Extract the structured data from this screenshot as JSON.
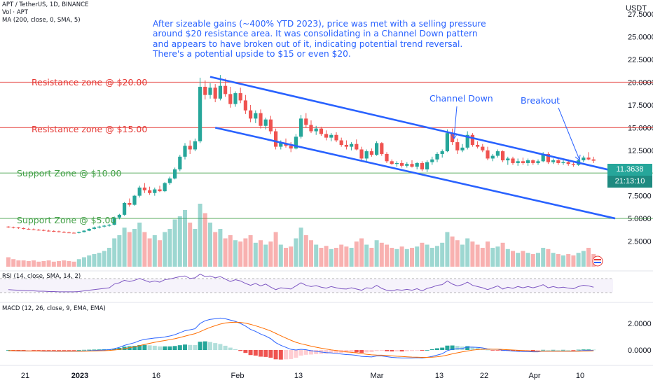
{
  "header": {
    "line1": "APT / TetherUS, 1D, BINANCE",
    "line2": "Vol · APT",
    "line3": "MA (200, close, 0, SMA, 5)"
  },
  "note": [
    "After sizeable gains (~400% YTD 2023), price was met with a selling pressure around $20 resistance area. It was consolidating in a Channel Down pattern and appears to have broken out of it, indicating potential trend reversal.",
    "There's a potential upside to $15 or even $20."
  ],
  "zones": [
    {
      "label": "Resistance zone @ $20.00",
      "price": 20.0,
      "color": "#e53935"
    },
    {
      "label": "Resistance zone @ $15.00",
      "price": 15.0,
      "color": "#e53935"
    },
    {
      "label": "Support Zone @ $10.00",
      "price": 10.0,
      "color": "#43a047"
    },
    {
      "label": "Support Zone @ $5.00",
      "price": 5.0,
      "color": "#43a047"
    }
  ],
  "callouts": {
    "channel": "Channel Down",
    "breakout": "Breakout"
  },
  "axis": {
    "currency": "USDT",
    "ticks": [
      "27.5000",
      "25.0000",
      "22.5000",
      "20.0000",
      "17.5000",
      "15.0000",
      "12.5000",
      "7.5000",
      "5.0000",
      "2.5000"
    ],
    "macd_ticks": [
      "2.0000",
      "0.0000"
    ],
    "last_price": "11.3638",
    "countdown": "21:13:10",
    "dates": [
      "21",
      "2023",
      "16",
      "Feb",
      "13",
      "Mar",
      "13",
      "22",
      "Apr",
      "10"
    ]
  },
  "rsi_label": "RSI (14, close, SMA, 14, 2)",
  "macd_label": "MACD (12, 26, close, 9, EMA, EMA)",
  "colors": {
    "up": "#26a69a",
    "down": "#ef5350",
    "channel": "#2962ff",
    "rsi": "#7e57c2",
    "macd": "#2962ff",
    "signal": "#ff6d00"
  },
  "chart_data": {
    "type": "candlestick",
    "symbol": "APT / TetherUS",
    "timeframe": "1D",
    "ylim": [
      0,
      28.5
    ],
    "candles": [
      [
        4.1,
        4.15,
        3.95,
        4.05
      ],
      [
        4.05,
        4.1,
        3.9,
        4.0
      ],
      [
        4.0,
        4.05,
        3.85,
        3.92
      ],
      [
        3.92,
        4.0,
        3.8,
        3.85
      ],
      [
        3.85,
        3.95,
        3.75,
        3.8
      ],
      [
        3.8,
        3.9,
        3.7,
        3.75
      ],
      [
        3.75,
        3.85,
        3.65,
        3.72
      ],
      [
        3.72,
        3.8,
        3.6,
        3.65
      ],
      [
        3.65,
        3.75,
        3.55,
        3.62
      ],
      [
        3.62,
        3.7,
        3.5,
        3.58
      ],
      [
        3.58,
        3.65,
        3.45,
        3.5
      ],
      [
        3.5,
        3.6,
        3.4,
        3.45
      ],
      [
        3.45,
        3.55,
        3.38,
        3.42
      ],
      [
        3.42,
        3.5,
        3.35,
        3.4
      ],
      [
        3.4,
        3.55,
        3.35,
        3.5
      ],
      [
        3.5,
        3.7,
        3.45,
        3.65
      ],
      [
        3.65,
        3.9,
        3.6,
        3.85
      ],
      [
        3.85,
        4.1,
        3.8,
        4.0
      ],
      [
        4.0,
        4.2,
        3.9,
        4.1
      ],
      [
        4.1,
        4.3,
        4.0,
        4.2
      ],
      [
        4.2,
        4.4,
        4.1,
        4.3
      ],
      [
        4.3,
        5.2,
        4.25,
        5.1
      ],
      [
        5.1,
        5.5,
        4.9,
        5.4
      ],
      [
        5.4,
        6.8,
        5.3,
        6.7
      ],
      [
        6.7,
        7.2,
        6.3,
        6.5
      ],
      [
        6.5,
        7.6,
        6.4,
        7.5
      ],
      [
        7.5,
        8.6,
        7.3,
        8.4
      ],
      [
        8.4,
        8.9,
        7.8,
        8.1
      ],
      [
        8.1,
        8.5,
        7.6,
        7.8
      ],
      [
        7.8,
        8.4,
        7.5,
        8.2
      ],
      [
        8.2,
        8.6,
        7.9,
        8.0
      ],
      [
        8.0,
        9.0,
        7.9,
        8.9
      ],
      [
        8.9,
        9.6,
        8.7,
        9.4
      ],
      [
        9.4,
        10.6,
        9.3,
        10.4
      ],
      [
        10.4,
        12.0,
        10.2,
        11.8
      ],
      [
        11.8,
        13.3,
        11.5,
        13.0
      ],
      [
        13.0,
        13.6,
        12.1,
        12.6
      ],
      [
        12.6,
        13.8,
        12.4,
        13.5
      ],
      [
        13.5,
        20.5,
        13.3,
        19.5
      ],
      [
        19.5,
        20.2,
        18.1,
        18.6
      ],
      [
        18.6,
        19.9,
        18.2,
        19.4
      ],
      [
        19.4,
        19.8,
        17.8,
        18.2
      ],
      [
        18.2,
        20.8,
        18.0,
        19.6
      ],
      [
        19.6,
        20.4,
        18.4,
        18.7
      ],
      [
        18.7,
        19.5,
        17.2,
        17.6
      ],
      [
        17.6,
        19.0,
        17.3,
        18.8
      ],
      [
        18.8,
        19.4,
        17.7,
        18.0
      ],
      [
        18.0,
        18.6,
        16.5,
        16.9
      ],
      [
        16.9,
        17.5,
        15.6,
        16.0
      ],
      [
        16.0,
        16.9,
        15.5,
        16.6
      ],
      [
        16.6,
        17.0,
        14.9,
        15.2
      ],
      [
        15.2,
        16.1,
        14.8,
        15.9
      ],
      [
        15.9,
        16.3,
        14.3,
        14.6
      ],
      [
        14.6,
        14.9,
        12.6,
        12.9
      ],
      [
        12.9,
        13.6,
        12.6,
        13.3
      ],
      [
        13.3,
        13.8,
        12.8,
        13.0
      ],
      [
        13.0,
        13.4,
        12.3,
        12.7
      ],
      [
        12.7,
        14.3,
        12.6,
        14.0
      ],
      [
        14.0,
        16.4,
        13.8,
        16.0
      ],
      [
        16.0,
        16.6,
        15.0,
        15.3
      ],
      [
        15.3,
        15.8,
        14.4,
        14.6
      ],
      [
        14.6,
        15.2,
        14.2,
        14.9
      ],
      [
        14.9,
        15.1,
        14.1,
        14.3
      ],
      [
        14.3,
        14.7,
        13.6,
        13.9
      ],
      [
        13.9,
        14.4,
        13.5,
        14.2
      ],
      [
        14.2,
        14.5,
        13.4,
        13.6
      ],
      [
        13.6,
        13.9,
        12.9,
        13.1
      ],
      [
        13.1,
        13.6,
        12.6,
        12.9
      ],
      [
        12.9,
        13.4,
        12.5,
        13.2
      ],
      [
        13.2,
        13.7,
        12.5,
        12.6
      ],
      [
        12.6,
        12.9,
        11.4,
        11.6
      ],
      [
        11.6,
        12.6,
        11.3,
        12.4
      ],
      [
        12.4,
        12.7,
        11.8,
        12.0
      ],
      [
        12.0,
        13.5,
        11.9,
        13.3
      ],
      [
        13.3,
        13.4,
        11.9,
        12.1
      ],
      [
        12.1,
        12.3,
        11.1,
        11.3
      ],
      [
        11.3,
        11.5,
        10.9,
        11.0
      ],
      [
        11.0,
        11.3,
        10.7,
        11.1
      ],
      [
        11.1,
        11.4,
        10.6,
        10.8
      ],
      [
        10.8,
        11.2,
        10.6,
        11.0
      ],
      [
        11.0,
        11.4,
        10.6,
        10.7
      ],
      [
        10.7,
        11.2,
        10.4,
        11.1
      ],
      [
        11.1,
        11.3,
        10.2,
        10.4
      ],
      [
        10.4,
        11.4,
        10.1,
        11.2
      ],
      [
        11.2,
        11.8,
        10.9,
        11.5
      ],
      [
        11.5,
        12.3,
        11.2,
        12.1
      ],
      [
        12.1,
        12.6,
        11.7,
        12.4
      ],
      [
        12.4,
        14.8,
        12.3,
        14.4
      ],
      [
        14.4,
        14.9,
        13.1,
        13.4
      ],
      [
        13.4,
        13.8,
        12.1,
        12.5
      ],
      [
        12.5,
        13.2,
        12.3,
        12.8
      ],
      [
        12.8,
        14.6,
        12.6,
        14.2
      ],
      [
        14.2,
        14.4,
        12.9,
        13.1
      ],
      [
        13.1,
        13.5,
        12.7,
        12.9
      ],
      [
        12.9,
        13.2,
        12.3,
        12.5
      ],
      [
        12.5,
        12.9,
        11.4,
        11.6
      ],
      [
        11.6,
        12.1,
        11.3,
        11.9
      ],
      [
        11.9,
        12.6,
        11.7,
        12.4
      ],
      [
        12.4,
        12.5,
        11.2,
        11.4
      ],
      [
        11.4,
        11.8,
        10.9,
        11.6
      ],
      [
        11.6,
        11.8,
        10.9,
        11.1
      ],
      [
        11.1,
        11.6,
        10.8,
        11.3
      ],
      [
        11.3,
        11.7,
        10.9,
        11.1
      ],
      [
        11.1,
        11.6,
        10.8,
        11.4
      ],
      [
        11.4,
        11.5,
        10.9,
        11.1
      ],
      [
        11.1,
        11.5,
        10.9,
        11.3
      ],
      [
        11.3,
        12.3,
        11.2,
        12.1
      ],
      [
        12.1,
        12.3,
        11.0,
        11.2
      ],
      [
        11.2,
        11.6,
        11.0,
        11.4
      ],
      [
        11.4,
        11.6,
        10.9,
        11.1
      ],
      [
        11.1,
        11.4,
        10.9,
        11.2
      ],
      [
        11.2,
        11.5,
        10.8,
        11.0
      ],
      [
        11.0,
        11.3,
        10.7,
        10.9
      ],
      [
        10.9,
        11.5,
        10.8,
        11.4
      ],
      [
        11.4,
        11.9,
        11.2,
        11.7
      ],
      [
        11.7,
        12.3,
        11.4,
        11.5
      ],
      [
        11.5,
        11.8,
        11.1,
        11.36
      ]
    ],
    "volume": [
      0.15,
      0.12,
      0.1,
      0.1,
      0.09,
      0.1,
      0.08,
      0.09,
      0.1,
      0.08,
      0.09,
      0.1,
      0.09,
      0.08,
      0.12,
      0.15,
      0.18,
      0.2,
      0.22,
      0.25,
      0.3,
      0.45,
      0.5,
      0.62,
      0.55,
      0.6,
      0.7,
      0.55,
      0.45,
      0.5,
      0.42,
      0.55,
      0.6,
      0.75,
      0.8,
      0.9,
      0.7,
      0.6,
      1.0,
      0.85,
      0.7,
      0.55,
      0.6,
      0.45,
      0.5,
      0.42,
      0.4,
      0.45,
      0.5,
      0.38,
      0.42,
      0.35,
      0.4,
      0.55,
      0.35,
      0.3,
      0.32,
      0.45,
      0.62,
      0.5,
      0.42,
      0.35,
      0.3,
      0.33,
      0.28,
      0.3,
      0.35,
      0.32,
      0.3,
      0.4,
      0.45,
      0.35,
      0.3,
      0.42,
      0.38,
      0.35,
      0.3,
      0.28,
      0.32,
      0.28,
      0.3,
      0.32,
      0.38,
      0.35,
      0.3,
      0.33,
      0.38,
      0.55,
      0.48,
      0.42,
      0.35,
      0.45,
      0.4,
      0.35,
      0.3,
      0.4,
      0.3,
      0.32,
      0.38,
      0.28,
      0.25,
      0.22,
      0.25,
      0.22,
      0.2,
      0.22,
      0.3,
      0.28,
      0.22,
      0.2,
      0.18,
      0.2,
      0.18,
      0.22,
      0.25,
      0.3,
      0.2
    ],
    "ma200": [],
    "rsi": [
      42,
      41,
      40,
      39,
      38,
      38,
      37,
      37,
      36,
      36,
      35,
      35,
      35,
      35,
      36,
      38,
      40,
      42,
      44,
      46,
      48,
      60,
      64,
      72,
      68,
      72,
      78,
      72,
      66,
      70,
      66,
      74,
      76,
      80,
      84,
      86,
      78,
      80,
      92,
      84,
      86,
      80,
      84,
      76,
      68,
      74,
      70,
      62,
      56,
      62,
      54,
      60,
      50,
      42,
      48,
      46,
      44,
      54,
      64,
      56,
      52,
      55,
      50,
      47,
      52,
      48,
      45,
      44,
      48,
      44,
      40,
      48,
      46,
      56,
      46,
      40,
      38,
      42,
      40,
      43,
      40,
      45,
      38,
      46,
      50,
      56,
      58,
      70,
      60,
      54,
      58,
      66,
      56,
      52,
      48,
      42,
      48,
      54,
      44,
      50,
      46,
      52,
      48,
      52,
      48,
      52,
      58,
      48,
      52,
      48,
      50,
      47,
      45,
      52,
      56,
      54,
      50
    ],
    "macd": [
      -0.05,
      -0.06,
      -0.07,
      -0.07,
      -0.08,
      -0.08,
      -0.08,
      -0.09,
      -0.09,
      -0.09,
      -0.1,
      -0.1,
      -0.1,
      -0.1,
      -0.09,
      -0.08,
      -0.06,
      -0.04,
      -0.02,
      0.0,
      0.02,
      0.1,
      0.2,
      0.35,
      0.45,
      0.55,
      0.7,
      0.8,
      0.85,
      0.9,
      0.92,
      0.98,
      1.05,
      1.15,
      1.3,
      1.45,
      1.52,
      1.6,
      2.0,
      2.2,
      2.3,
      2.35,
      2.4,
      2.35,
      2.25,
      2.15,
      2.0,
      1.8,
      1.55,
      1.4,
      1.2,
      1.05,
      0.85,
      0.55,
      0.35,
      0.2,
      0.05,
      0.0,
      0.05,
      0.02,
      -0.05,
      -0.1,
      -0.15,
      -0.2,
      -0.22,
      -0.26,
      -0.3,
      -0.34,
      -0.36,
      -0.4,
      -0.48,
      -0.5,
      -0.52,
      -0.45,
      -0.45,
      -0.5,
      -0.55,
      -0.58,
      -0.6,
      -0.6,
      -0.6,
      -0.58,
      -0.6,
      -0.55,
      -0.48,
      -0.38,
      -0.28,
      -0.05,
      0.05,
      0.1,
      0.12,
      0.22,
      0.22,
      0.2,
      0.16,
      0.08,
      0.05,
      0.05,
      -0.02,
      -0.04,
      -0.08,
      -0.1,
      -0.12,
      -0.12,
      -0.14,
      -0.14,
      -0.08,
      -0.09,
      -0.08,
      -0.09,
      -0.08,
      -0.09,
      -0.1,
      -0.07,
      -0.04,
      -0.03,
      -0.03
    ],
    "signal": [
      -0.05,
      -0.05,
      -0.06,
      -0.06,
      -0.07,
      -0.07,
      -0.07,
      -0.08,
      -0.08,
      -0.08,
      -0.09,
      -0.09,
      -0.09,
      -0.09,
      -0.09,
      -0.09,
      -0.08,
      -0.07,
      -0.06,
      -0.05,
      -0.03,
      0.0,
      0.04,
      0.1,
      0.17,
      0.24,
      0.33,
      0.42,
      0.5,
      0.58,
      0.65,
      0.71,
      0.78,
      0.85,
      0.94,
      1.04,
      1.14,
      1.23,
      1.38,
      1.55,
      1.7,
      1.83,
      1.95,
      2.03,
      2.07,
      2.09,
      2.07,
      2.02,
      1.93,
      1.82,
      1.7,
      1.57,
      1.43,
      1.25,
      1.07,
      0.9,
      0.73,
      0.58,
      0.47,
      0.38,
      0.29,
      0.21,
      0.14,
      0.07,
      0.01,
      -0.04,
      -0.09,
      -0.14,
      -0.18,
      -0.22,
      -0.27,
      -0.32,
      -0.36,
      -0.38,
      -0.39,
      -0.41,
      -0.44,
      -0.47,
      -0.49,
      -0.51,
      -0.53,
      -0.54,
      -0.55,
      -0.55,
      -0.54,
      -0.51,
      -0.46,
      -0.38,
      -0.29,
      -0.21,
      -0.14,
      -0.07,
      -0.01,
      0.03,
      0.06,
      0.06,
      0.06,
      0.06,
      0.04,
      0.02,
      0.0,
      -0.02,
      -0.04,
      -0.06,
      -0.08,
      -0.09,
      -0.09,
      -0.09,
      -0.09,
      -0.09,
      -0.09,
      -0.09,
      -0.09,
      -0.09,
      -0.08,
      -0.07,
      -0.06
    ]
  }
}
